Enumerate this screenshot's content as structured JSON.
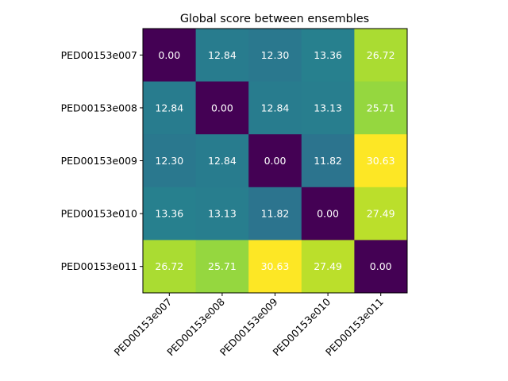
{
  "chart_data": {
    "type": "heatmap",
    "title": "Global score between ensembles",
    "xlabel": "",
    "ylabel": "",
    "rows": [
      "PED00153e007",
      "PED00153e008",
      "PED00153e009",
      "PED00153e010",
      "PED00153e011"
    ],
    "columns": [
      "PED00153e007",
      "PED00153e008",
      "PED00153e009",
      "PED00153e010",
      "PED00153e011"
    ],
    "values": [
      [
        0.0,
        12.84,
        12.3,
        13.36,
        26.72
      ],
      [
        12.84,
        0.0,
        12.84,
        13.13,
        25.71
      ],
      [
        12.3,
        12.84,
        0.0,
        11.82,
        30.63
      ],
      [
        13.36,
        13.13,
        11.82,
        0.0,
        27.49
      ],
      [
        26.72,
        25.71,
        30.63,
        27.49,
        0.0
      ]
    ],
    "value_labels": [
      [
        "0.00",
        "12.84",
        "12.30",
        "13.36",
        "26.72"
      ],
      [
        "12.84",
        "0.00",
        "12.84",
        "13.13",
        "25.71"
      ],
      [
        "12.30",
        "12.84",
        "0.00",
        "11.82",
        "30.63"
      ],
      [
        "13.36",
        "13.13",
        "11.82",
        "0.00",
        "27.49"
      ],
      [
        "26.72",
        "25.71",
        "30.63",
        "27.49",
        "0.00"
      ]
    ],
    "colormap": "viridis",
    "value_range": [
      0.0,
      30.63
    ],
    "annotation_color": "#ffffff",
    "grid": false,
    "legend": "none"
  }
}
